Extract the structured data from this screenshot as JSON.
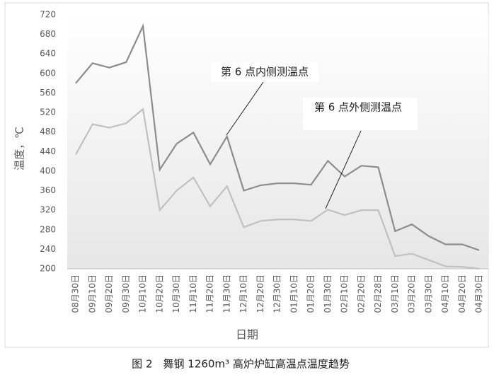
{
  "chart_data": {
    "type": "line",
    "y_label": "温度，℃",
    "x_label": "日期",
    "caption": "图 2　舞钢 1260m³ 高炉炉缸高温点温度趋势",
    "categories": [
      "08月30日",
      "09月10日",
      "09月20日",
      "09月30日",
      "10月10日",
      "10月20日",
      "10月30日",
      "11月10日",
      "11月20日",
      "11月30日",
      "12月10日",
      "12月20日",
      "12月30日",
      "01月10日",
      "01月20日",
      "01月30日",
      "02月10日",
      "02月20日",
      "02月28日",
      "03月10日",
      "03月20日",
      "03月30日",
      "04月10日",
      "04月20日",
      "04月30日"
    ],
    "series": [
      {
        "name": "第 6 点内侧测温点",
        "color": "#8c8c8c",
        "values": [
          580,
          621,
          612,
          623,
          697,
          403,
          456,
          479,
          414,
          471,
          360,
          371,
          375,
          375,
          372,
          421,
          389,
          411,
          408,
          277,
          291,
          267,
          250,
          250,
          238
        ]
      },
      {
        "name": "第 6 点外侧测温点",
        "color": "#c0c0c0",
        "values": [
          434,
          496,
          489,
          498,
          527,
          320,
          360,
          387,
          328,
          369,
          285,
          298,
          301,
          301,
          298,
          321,
          310,
          320,
          320,
          226,
          231,
          218,
          205,
          204,
          200
        ]
      }
    ],
    "ylim": [
      200,
      720
    ],
    "yticks": [
      200,
      240,
      280,
      320,
      360,
      400,
      440,
      480,
      520,
      560,
      600,
      640,
      680,
      720
    ]
  }
}
